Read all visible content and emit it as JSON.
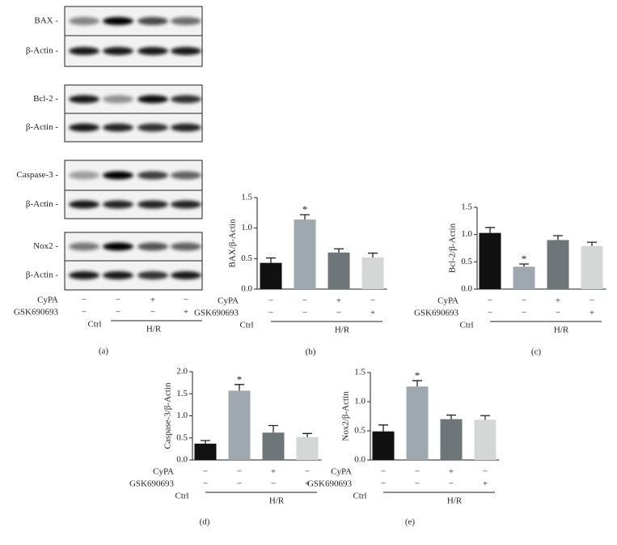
{
  "blot": {
    "rows": [
      "BAX -",
      "β-Actin -",
      "Bcl-2 -",
      "β-Actin -",
      "Caspase-3 -",
      "β-Actin -",
      "Nox2 -",
      "β-Actin -"
    ],
    "conditions": [
      {
        "name": "CyPA",
        "signs": [
          "−",
          "−",
          "+",
          "−"
        ]
      },
      {
        "name": "GSK690693",
        "signs": [
          "−",
          "−",
          "−",
          "+"
        ]
      }
    ],
    "groups": [
      "Ctrl",
      "H/R"
    ],
    "panel_label": "(a)"
  },
  "chart_data": [
    {
      "type": "bar",
      "y_label": "BAX/β-Actin",
      "panel_label": "(b)",
      "values": [
        0.43,
        1.14,
        0.6,
        0.52
      ],
      "errors": [
        0.08,
        0.08,
        0.06,
        0.07
      ],
      "colors": [
        "#111111",
        "#9ea8ae",
        "#6f7679",
        "#d3d8d6"
      ],
      "ylim": [
        0,
        1.5
      ],
      "yticks": [
        {
          "value": 0,
          "label": "0.0"
        },
        0.5,
        {
          "value": 1,
          "label": "1.0"
        },
        1.5
      ],
      "annotations": [
        {
          "index": 1,
          "text": "*"
        }
      ],
      "conditions": [
        {
          "name": "CyPA",
          "signs": [
            "−",
            "−",
            "+",
            "−"
          ]
        },
        {
          "name": "GSK690693",
          "signs": [
            "−",
            "−",
            "−",
            "+"
          ]
        }
      ],
      "groups": [
        "Ctrl",
        "H/R"
      ]
    },
    {
      "type": "bar",
      "y_label": "Bcl-2/β-Actin",
      "panel_label": "(c)",
      "values": [
        1.03,
        0.41,
        0.9,
        0.79
      ],
      "errors": [
        0.1,
        0.05,
        0.08,
        0.07
      ],
      "colors": [
        "#111111",
        "#9ea8ae",
        "#6f7679",
        "#d3d8d6"
      ],
      "ylim": [
        0,
        1.5
      ],
      "yticks": [
        {
          "value": 0,
          "label": "0.0"
        },
        0.5,
        {
          "value": 1,
          "label": "1.0"
        },
        1.5
      ],
      "annotations": [
        {
          "index": 1,
          "text": "*"
        }
      ],
      "conditions": [
        {
          "name": "CyPA",
          "signs": [
            "−",
            "−",
            "+",
            "−"
          ]
        },
        {
          "name": "GSK690693",
          "signs": [
            "−",
            "−",
            "−",
            "+"
          ]
        }
      ],
      "groups": [
        "Ctrl",
        "H/R"
      ]
    },
    {
      "type": "bar",
      "y_label": "Caspase-3/β-Actin",
      "panel_label": "(d)",
      "values": [
        0.37,
        1.57,
        0.62,
        0.52
      ],
      "errors": [
        0.07,
        0.14,
        0.16,
        0.08
      ],
      "colors": [
        "#111111",
        "#9ea8ae",
        "#6f7679",
        "#d3d8d6"
      ],
      "ylim": [
        0,
        2
      ],
      "yticks": [
        {
          "value": 0,
          "label": "0.0"
        },
        0.5,
        {
          "value": 1,
          "label": "1.0"
        },
        1.5,
        {
          "value": 2,
          "label": "2.0"
        }
      ],
      "annotations": [
        {
          "index": 1,
          "text": "*"
        }
      ],
      "conditions": [
        {
          "name": "CyPA",
          "signs": [
            "−",
            "−",
            "+",
            "−"
          ]
        },
        {
          "name": "GSK690693",
          "signs": [
            "−",
            "−",
            "−",
            "+"
          ]
        }
      ],
      "groups": [
        "Ctrl",
        "H/R"
      ]
    },
    {
      "type": "bar",
      "y_label": "Nox2/β-Actin",
      "panel_label": "(e)",
      "values": [
        0.49,
        1.26,
        0.7,
        0.69
      ],
      "errors": [
        0.11,
        0.1,
        0.07,
        0.07
      ],
      "colors": [
        "#111111",
        "#9ea8ae",
        "#6f7679",
        "#d3d8d6"
      ],
      "ylim": [
        0,
        1.5
      ],
      "yticks": [
        {
          "value": 0,
          "label": "0.0"
        },
        0.5,
        {
          "value": 1,
          "label": "1.0"
        },
        1.5
      ],
      "annotations": [
        {
          "index": 1,
          "text": "*"
        }
      ],
      "conditions": [
        {
          "name": "CyPA",
          "signs": [
            "−",
            "−",
            "+",
            "−"
          ]
        },
        {
          "name": "GSK690693",
          "signs": [
            "−",
            "−",
            "−",
            "+"
          ]
        }
      ],
      "groups": [
        "Ctrl",
        "H/R"
      ]
    }
  ]
}
